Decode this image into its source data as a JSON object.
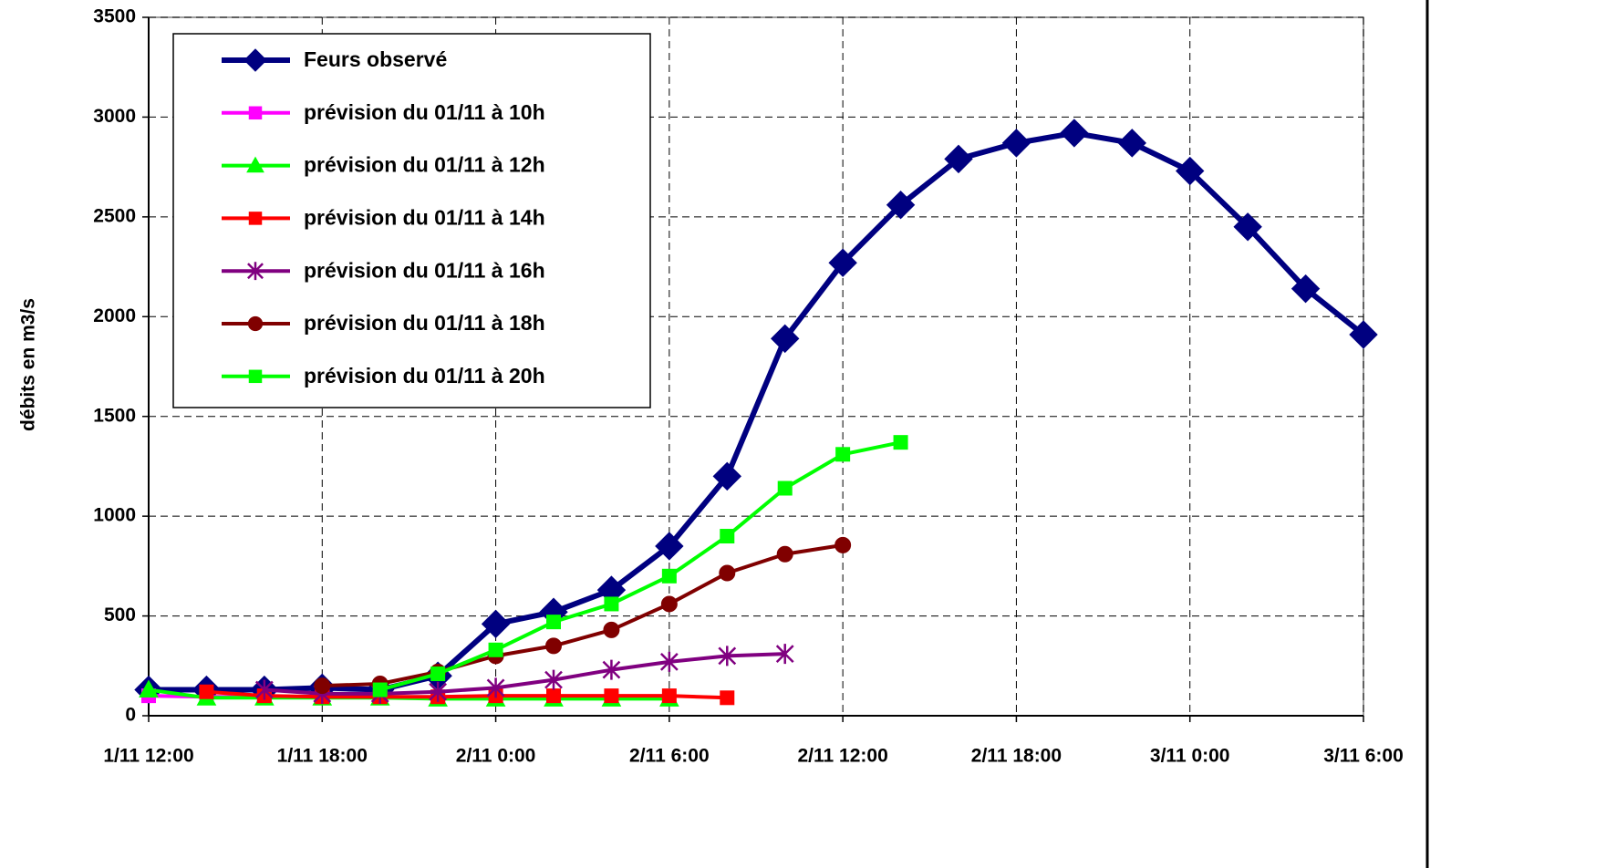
{
  "chart_data": {
    "type": "line",
    "y_label": "débits en m3/s",
    "categories": [
      "1/11 12:00",
      null,
      null,
      "1/11 18:00",
      null,
      null,
      "2/11 0:00",
      null,
      null,
      "2/11 6:00",
      null,
      null,
      "2/11 12:00",
      null,
      null,
      "2/11 18:00",
      null,
      null,
      "3/11 0:00",
      null,
      null,
      "3/11 6:00"
    ],
    "ylim": [
      0,
      3500
    ],
    "yticks": [
      0,
      500,
      1000,
      1500,
      2000,
      2500,
      3000,
      3500
    ],
    "grid": true,
    "legend": "upper left",
    "series": [
      {
        "name": "Feurs observé",
        "color": "#000080",
        "marker": "diamond",
        "values": [
          130,
          130,
          130,
          140,
          130,
          200,
          460,
          520,
          630,
          850,
          1200,
          1890,
          2270,
          2560,
          2790,
          2870,
          2920,
          2870,
          2730,
          2450,
          2140,
          1910
        ]
      },
      {
        "name": "prévision du 01/11 à 10h",
        "color": "#ff00ff",
        "marker": "square",
        "values": [
          100,
          95,
          95,
          95,
          90,
          90,
          90,
          90,
          90,
          null,
          null,
          null,
          null,
          null,
          null,
          null,
          null,
          null,
          null,
          null,
          null,
          null
        ]
      },
      {
        "name": "prévision du 01/11 à 12h",
        "color": "#00ff00",
        "marker": "triangle",
        "values": [
          130,
          90,
          90,
          90,
          90,
          85,
          85,
          85,
          85,
          85,
          null,
          null,
          null,
          null,
          null,
          null,
          null,
          null,
          null,
          null,
          null,
          null
        ]
      },
      {
        "name": "prévision du 01/11 à 14h",
        "color": "#ff0000",
        "marker": "square",
        "values": [
          null,
          120,
          100,
          95,
          95,
          95,
          100,
          100,
          100,
          100,
          90,
          null,
          null,
          null,
          null,
          null,
          null,
          null,
          null,
          null,
          null,
          null
        ]
      },
      {
        "name": "prévision du 01/11 à 16h",
        "color": "#800080",
        "marker": "star",
        "values": [
          null,
          null,
          130,
          110,
          110,
          120,
          140,
          180,
          230,
          270,
          300,
          310,
          null,
          null,
          null,
          null,
          null,
          null,
          null,
          null,
          null,
          null
        ]
      },
      {
        "name": "prévision du 01/11 à 18h",
        "color": "#800000",
        "marker": "circle",
        "values": [
          null,
          null,
          null,
          150,
          160,
          220,
          300,
          350,
          430,
          560,
          715,
          810,
          855,
          null,
          null,
          null,
          null,
          null,
          null,
          null,
          null,
          null
        ]
      },
      {
        "name": "prévision du 01/11 à 20h",
        "color": "#00ff00",
        "marker": "square",
        "values": [
          null,
          null,
          null,
          null,
          130,
          210,
          330,
          470,
          560,
          700,
          900,
          1140,
          1310,
          1370,
          null,
          null,
          null,
          null,
          null,
          null,
          null,
          null
        ]
      }
    ]
  }
}
